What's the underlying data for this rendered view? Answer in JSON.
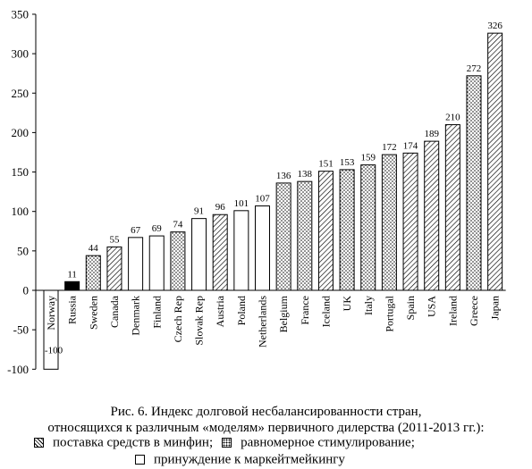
{
  "chart_data": {
    "type": "bar",
    "title": "",
    "xlabel": "",
    "ylabel": "",
    "ylim": [
      -100,
      350
    ],
    "yticks": [
      -100,
      -50,
      0,
      50,
      100,
      150,
      200,
      250,
      300,
      350
    ],
    "grid": false,
    "categories": [
      "Norway",
      "Russia",
      "Sweden",
      "Canada",
      "Denmark",
      "Finland",
      "Czech Rep",
      "Slovak Rep",
      "Austria",
      "Poland",
      "Netherlands",
      "Belgium",
      "France",
      "Iceland",
      "UK",
      "Italy",
      "Portugal",
      "Spain",
      "USA",
      "Ireland",
      "Greece",
      "Japan"
    ],
    "values": [
      -100,
      11,
      44,
      55,
      67,
      69,
      74,
      91,
      96,
      101,
      107,
      136,
      138,
      151,
      153,
      159,
      172,
      174,
      189,
      210,
      272,
      326
    ],
    "value_labels": [
      "-100",
      "11",
      "44",
      "55",
      "67",
      "69",
      "74",
      "91",
      "96",
      "101",
      "107",
      "136",
      "138",
      "151",
      "153",
      "159",
      "172",
      "174",
      "189",
      "210",
      "272",
      "326"
    ],
    "label_shown": [
      true,
      true,
      true,
      true,
      true,
      true,
      true,
      true,
      true,
      true,
      true,
      true,
      true,
      true,
      true,
      true,
      true,
      true,
      true,
      true,
      true,
      true
    ],
    "bar_patterns": [
      "plain",
      "solid",
      "dots",
      "hatch",
      "plain",
      "plain",
      "dots",
      "plain",
      "hatch",
      "plain",
      "plain",
      "dots",
      "dots",
      "hatch",
      "dots",
      "dots",
      "dots",
      "hatch",
      "hatch",
      "hatch",
      "dots",
      "hatch"
    ],
    "colors": {
      "bar_stroke": "#000000",
      "solid_fill": "#000000",
      "plain_fill": "#ffffff"
    }
  },
  "caption": {
    "line1": "Рис. 6. Индекс долговой несбалансированности стран,",
    "line2": "относящихся к различным «моделям» первичного дилерства (2011-2013 гг.):"
  },
  "legend": [
    {
      "pattern": "hatch",
      "label": "поставка средств в минфин;"
    },
    {
      "pattern": "dots",
      "label": "равномерное стимулирование;"
    },
    {
      "pattern": "plain",
      "label": "принуждение к маркейтмейкингу"
    }
  ]
}
